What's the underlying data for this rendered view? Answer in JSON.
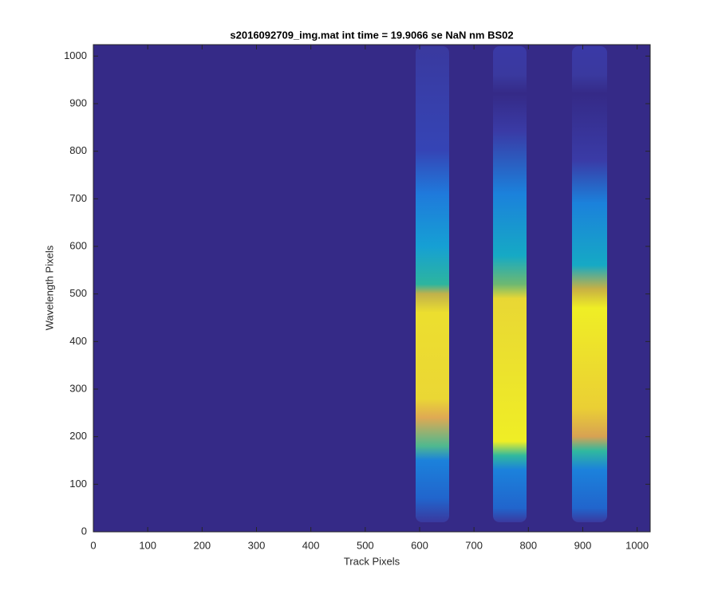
{
  "chart_data": {
    "type": "heatmap",
    "title": "s2016092709_img.mat int time = 19.9066 se  NaN nm BS02",
    "x_label": "Track Pixels",
    "y_label": "Wavelength Pixels",
    "xlim": [
      0,
      1024
    ],
    "ylim": [
      0,
      1024
    ],
    "xticks": [
      0,
      100,
      200,
      300,
      400,
      500,
      600,
      700,
      800,
      900,
      1000
    ],
    "yticks": [
      0,
      100,
      200,
      300,
      400,
      500,
      600,
      700,
      800,
      900,
      1000
    ],
    "colormap": "parula"
  }
}
